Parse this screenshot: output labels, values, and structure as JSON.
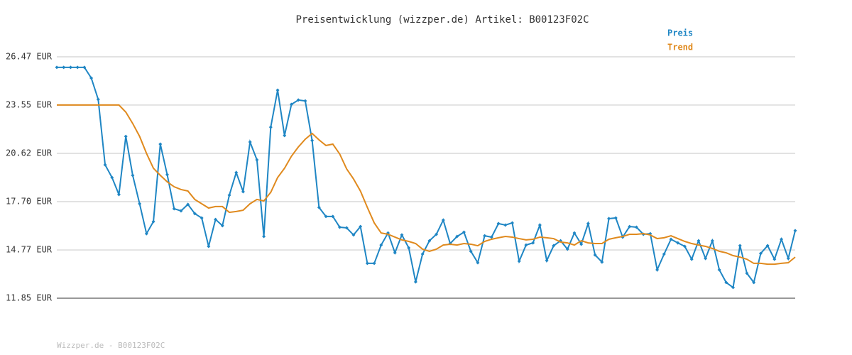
{
  "chart_data": {
    "type": "line",
    "title": "Preisentwicklung (wizzper.de) Artikel: B00123F02C",
    "footer": "Wizzper.de - B00123F02C",
    "ylim": [
      11.85,
      26.47
    ],
    "yticks": [
      {
        "value": 11.85,
        "label": "11.85 EUR"
      },
      {
        "value": 14.77,
        "label": "14.77 EUR"
      },
      {
        "value": 17.7,
        "label": "17.70 EUR"
      },
      {
        "value": 20.62,
        "label": "20.62 EUR"
      },
      {
        "value": 23.55,
        "label": "23.55 EUR"
      },
      {
        "value": 26.47,
        "label": "26.47 EUR"
      }
    ],
    "grid": true,
    "series": [
      {
        "name": "Preis",
        "color": "#1f86c4",
        "markers": true,
        "values": [
          25.83,
          25.83,
          25.83,
          25.83,
          25.83,
          25.18,
          23.89,
          19.93,
          19.16,
          18.13,
          21.65,
          19.29,
          17.57,
          15.76,
          16.49,
          21.18,
          19.33,
          17.27,
          17.14,
          17.53,
          16.97,
          16.71,
          14.99,
          16.62,
          16.24,
          18.09,
          19.46,
          18.3,
          21.31,
          20.23,
          15.59,
          22.21,
          24.45,
          21.7,
          23.59,
          23.85,
          23.8,
          21.4,
          17.35,
          16.8,
          16.8,
          16.15,
          16.11,
          15.68,
          16.19,
          13.96,
          13.96,
          15.07,
          15.8,
          14.6,
          15.68,
          14.9,
          12.84,
          14.52,
          15.33,
          15.72,
          16.58,
          15.16,
          15.59,
          15.85,
          14.69,
          14.0,
          15.63,
          15.55,
          16.37,
          16.28,
          16.41,
          14.09,
          15.07,
          15.2,
          16.28,
          14.13,
          15.03,
          15.33,
          14.82,
          15.8,
          15.12,
          16.37,
          14.47,
          14.04,
          16.67,
          16.71,
          15.55,
          16.19,
          16.15,
          15.72,
          15.76,
          13.57,
          14.52,
          15.42,
          15.2,
          14.99,
          14.21,
          15.33,
          14.26,
          15.33,
          13.57,
          12.8,
          12.5,
          15.03,
          13.36,
          12.8,
          14.56,
          15.03,
          14.21,
          15.42,
          14.26,
          15.94
        ]
      },
      {
        "name": "Trend",
        "color": "#e08a1e",
        "markers": false,
        "values": [
          23.55,
          23.55,
          23.55,
          23.55,
          23.55,
          23.55,
          23.55,
          23.55,
          23.55,
          23.55,
          23.12,
          22.43,
          21.65,
          20.62,
          19.72,
          19.29,
          18.9,
          18.6,
          18.43,
          18.34,
          17.83,
          17.57,
          17.31,
          17.4,
          17.4,
          17.05,
          17.1,
          17.18,
          17.57,
          17.83,
          17.74,
          18.26,
          19.16,
          19.72,
          20.45,
          21.01,
          21.48,
          21.83,
          21.44,
          21.1,
          21.18,
          20.58,
          19.68,
          19.07,
          18.34,
          17.35,
          16.41,
          15.8,
          15.72,
          15.55,
          15.38,
          15.29,
          15.16,
          14.82,
          14.69,
          14.82,
          15.07,
          15.12,
          15.07,
          15.16,
          15.12,
          15.03,
          15.29,
          15.42,
          15.51,
          15.59,
          15.55,
          15.46,
          15.38,
          15.42,
          15.55,
          15.51,
          15.46,
          15.25,
          15.2,
          15.07,
          15.33,
          15.2,
          15.16,
          15.16,
          15.42,
          15.51,
          15.59,
          15.72,
          15.72,
          15.76,
          15.68,
          15.46,
          15.51,
          15.63,
          15.46,
          15.29,
          15.16,
          15.07,
          14.99,
          14.86,
          14.69,
          14.6,
          14.43,
          14.34,
          14.21,
          13.96,
          13.96,
          13.91,
          13.91,
          13.96,
          14.0,
          14.34
        ]
      }
    ]
  }
}
